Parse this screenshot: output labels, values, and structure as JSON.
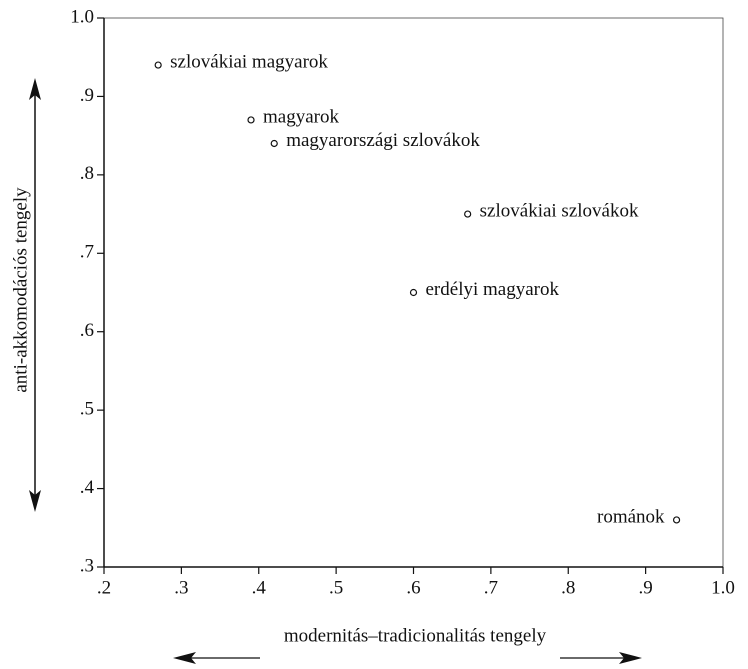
{
  "chart_data": {
    "type": "scatter",
    "xlabel": "modernitás–tradicionalitás tengely",
    "ylabel": "anti-akkomodációs tengely",
    "points": [
      {
        "label": "szlovákiai magyarok",
        "x": 0.27,
        "y": 0.94
      },
      {
        "label": "magyarok",
        "x": 0.39,
        "y": 0.87
      },
      {
        "label": "magyarországi szlovákok",
        "x": 0.42,
        "y": 0.84
      },
      {
        "label": "szlovákiai szlovákok",
        "x": 0.67,
        "y": 0.75
      },
      {
        "label": "erdélyi magyarok",
        "x": 0.6,
        "y": 0.65
      },
      {
        "label": "románok",
        "x": 0.94,
        "y": 0.36
      }
    ],
    "xlim": [
      0.2,
      1.0
    ],
    "xticks": [
      {
        "value": 0.2,
        "label": ".2"
      },
      {
        "value": 0.3,
        "label": ".3"
      },
      {
        "value": 0.4,
        "label": ".4"
      },
      {
        "value": 0.5,
        "label": ".5"
      },
      {
        "value": 0.6,
        "label": ".6"
      },
      {
        "value": 0.7,
        "label": ".7"
      },
      {
        "value": 0.8,
        "label": ".8"
      },
      {
        "value": 0.9,
        "label": ".9"
      },
      {
        "value": 1.0,
        "label": "1.0"
      }
    ],
    "ylim": [
      0.3,
      1.0
    ],
    "yticks": [
      {
        "value": 0.3,
        "label": ".3"
      },
      {
        "value": 0.4,
        "label": ".4"
      },
      {
        "value": 0.5,
        "label": ".5"
      },
      {
        "value": 0.6,
        "label": ".6"
      },
      {
        "value": 0.7,
        "label": ".7"
      },
      {
        "value": 0.8,
        "label": ".8"
      },
      {
        "value": 0.9,
        "label": ".9"
      },
      {
        "value": 1.0,
        "label": "1.0"
      }
    ],
    "color": "#111111"
  }
}
